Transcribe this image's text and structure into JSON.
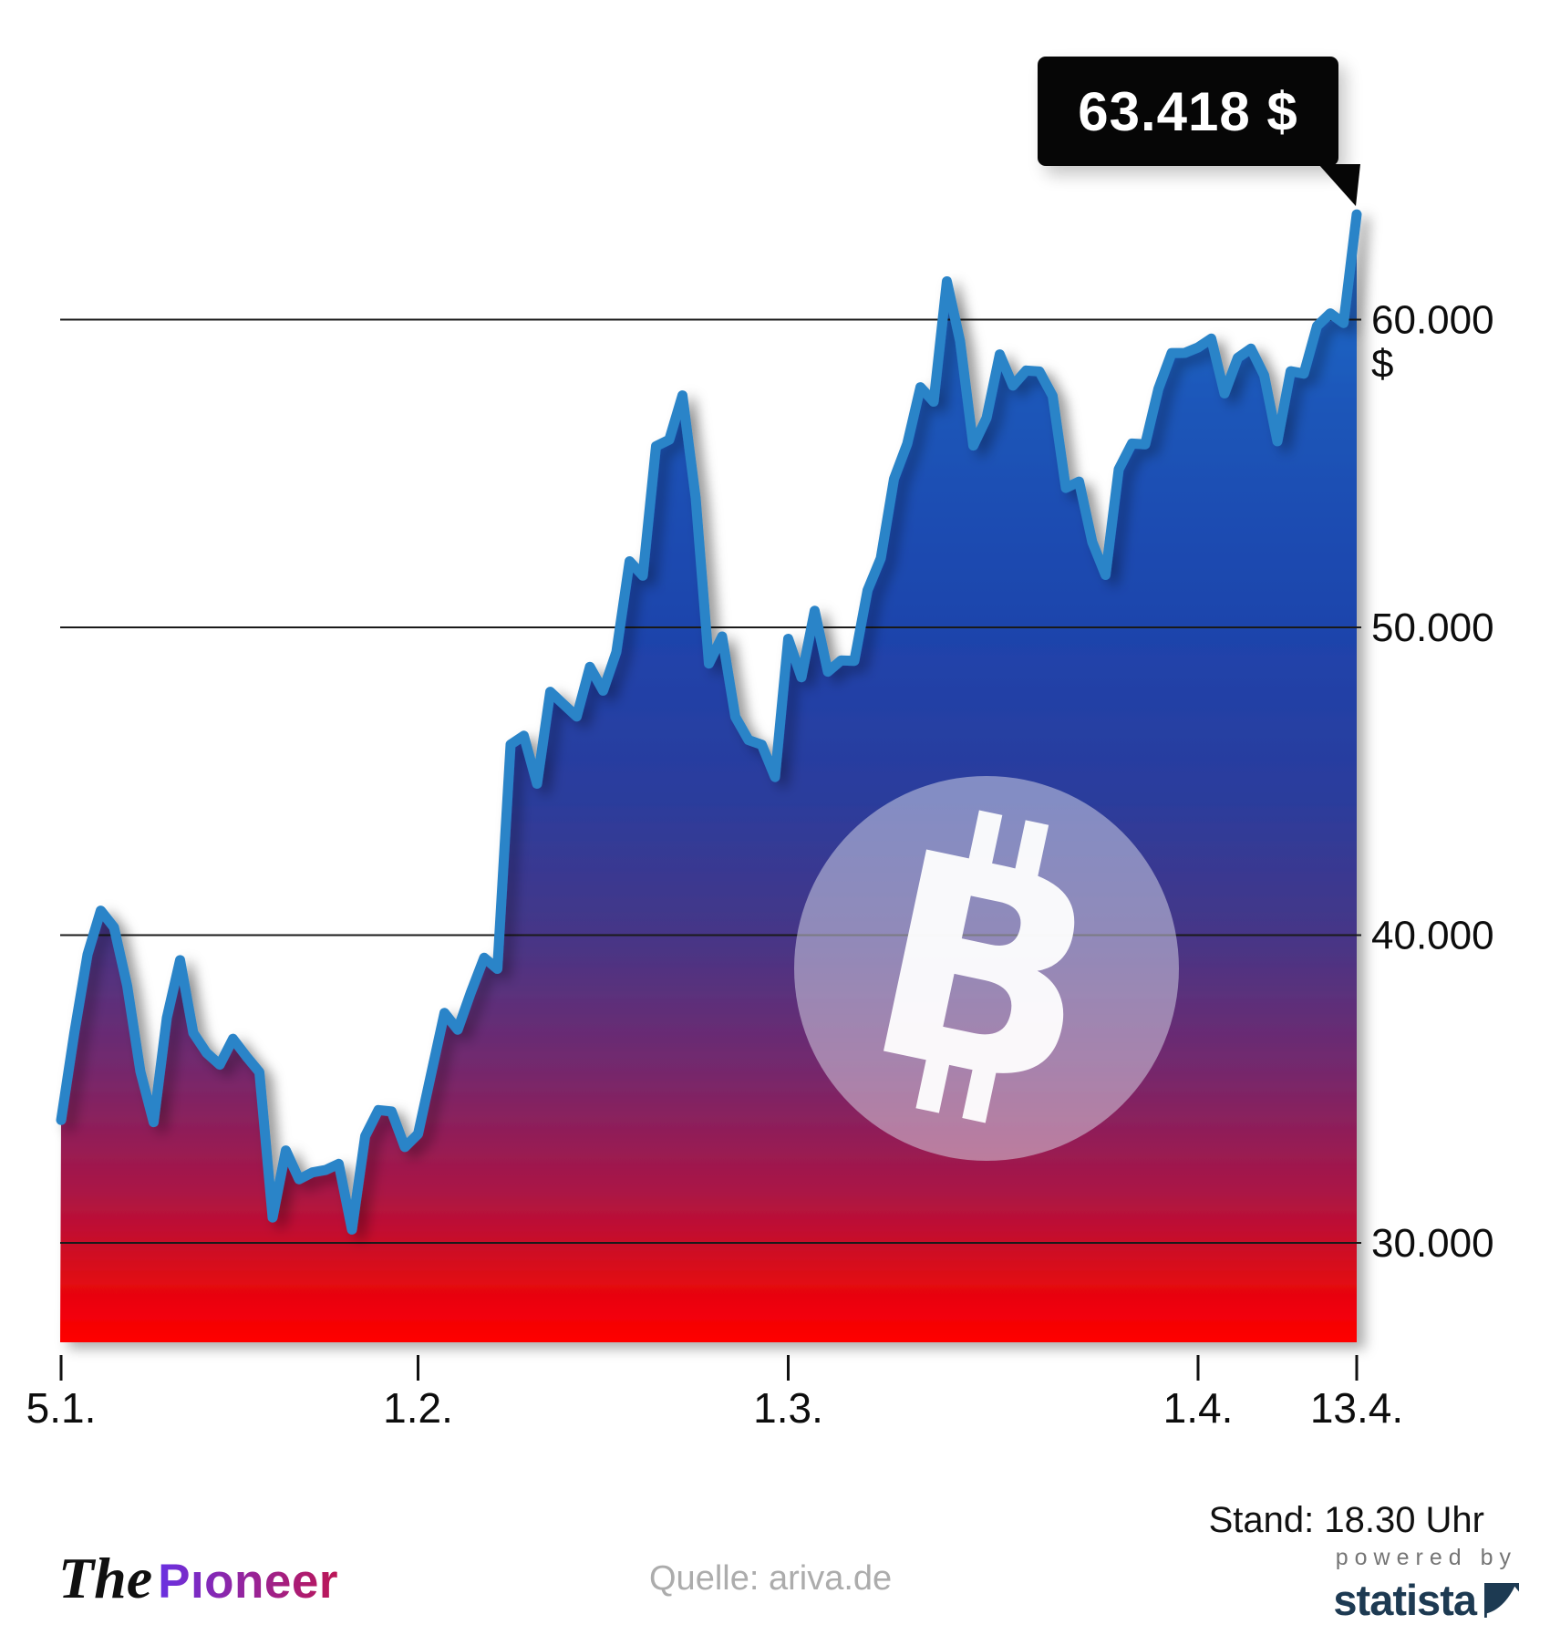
{
  "badge": {
    "label": "63.418 $"
  },
  "status": {
    "label": "Stand: 18.30 Uhr"
  },
  "watermark": {
    "letter": "B"
  },
  "footer": {
    "brand": {
      "the": "The",
      "pioneer": "Pıoneer"
    },
    "source": {
      "label": "Quelle: ariva.de"
    },
    "powered_by": {
      "line1": "powered by",
      "line2": "statista"
    }
  },
  "colors": {
    "line": "#2B84C8",
    "grid": "#1A1A1A",
    "badge_bg": "#060606",
    "statista_navy": "#1D3A52",
    "pioneer_gradient_start": "#6930E2",
    "pioneer_gradient_end": "#BC1655"
  },
  "chart_data": {
    "type": "area",
    "xlabel": "",
    "ylabel": "",
    "ylim": [
      26770,
      63510
    ],
    "grid": true,
    "legend": "none",
    "last_value_label": "63.418 $",
    "line_color": "#2B84C8",
    "grid_color": "#1A1A1A",
    "x_ticks": [
      {
        "label": "5.1.",
        "index": 0
      },
      {
        "label": "1.2.",
        "index": 27
      },
      {
        "label": "1.3.",
        "index": 55
      },
      {
        "label": "1.4.",
        "index": 86
      },
      {
        "label": "13.4.",
        "index": 98
      }
    ],
    "y_ticks": [
      {
        "label": "30.000",
        "value": 30000
      },
      {
        "label": "40.000",
        "value": 40000
      },
      {
        "label": "50.000",
        "value": 50000
      },
      {
        "label": "60.000",
        "value": 60000,
        "suffix": "$"
      }
    ],
    "series": [
      {
        "name": "bitcoin_usd_daily",
        "values": [
          33992,
          36824,
          39371,
          40797,
          40254,
          38356,
          35566,
          33922,
          37316,
          39187,
          36825,
          36178,
          35791,
          36630,
          36069,
          35547,
          30825,
          33005,
          32067,
          32289,
          32366,
          32569,
          30432,
          33466,
          34316,
          34269,
          33114,
          33537,
          35510,
          37472,
          36926,
          38144,
          39266,
          38903,
          46196,
          46481,
          44918,
          47909,
          47504,
          47105,
          48717,
          47945,
          49199,
          52149,
          51679,
          55888,
          56099,
          57539,
          54207,
          48824,
          49705,
          47093,
          46339,
          46188,
          45137,
          49631,
          48378,
          50538,
          48561,
          48927,
          48912,
          51206,
          52246,
          54824,
          55963,
          57805,
          57332,
          61243,
          59302,
          55907,
          56804,
          58870,
          57858,
          58346,
          58313,
          57523,
          54529,
          54738,
          52774,
          51704,
          55137,
          55973,
          55950,
          57750,
          58917,
          58918,
          59095,
          59384,
          57603,
          58758,
          59057,
          58192,
          56048,
          58323,
          58245,
          59793,
          60204,
          59890,
          63418
        ]
      }
    ],
    "area_gradient": [
      {
        "offset": 0.0,
        "color": "#2471CE"
      },
      {
        "offset": 0.18,
        "color": "#1C55B8"
      },
      {
        "offset": 0.37,
        "color": "#1E44AC"
      },
      {
        "offset": 0.52,
        "color": "#2B3C9C"
      },
      {
        "offset": 0.64,
        "color": "#463687"
      },
      {
        "offset": 0.76,
        "color": "#75286C"
      },
      {
        "offset": 0.87,
        "color": "#AC1444"
      },
      {
        "offset": 0.95,
        "color": "#E30711"
      },
      {
        "offset": 1.0,
        "color": "#FF0000"
      }
    ]
  }
}
